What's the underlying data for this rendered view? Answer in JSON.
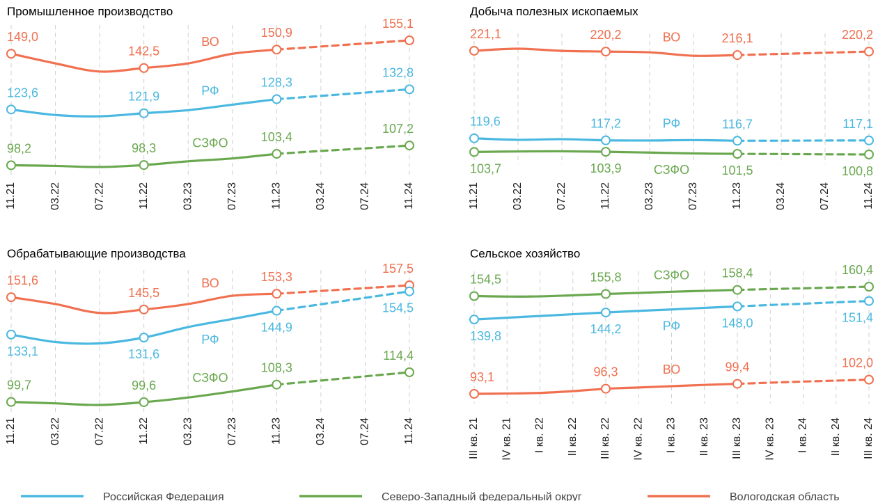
{
  "chart_data": [
    {
      "type": "line",
      "title": "Промышленное производство",
      "categories": [
        "11.21",
        "03.22",
        "07.22",
        "11.22",
        "03.23",
        "07.23",
        "11.23",
        "03.24",
        "07.24",
        "11.24"
      ],
      "forecast_from": 6,
      "grid": true,
      "series": [
        {
          "name": "ВО",
          "color": "#f07050",
          "label_position": "above",
          "values": [
            149.0,
            144.6,
            140.9,
            142.5,
            144.6,
            149.0,
            150.9,
            152.3,
            153.7,
            155.1
          ],
          "value_labels": [
            "149,0",
            null,
            null,
            "142,5",
            null,
            null,
            "150,9",
            null,
            null,
            "155,1"
          ]
        },
        {
          "name": "РФ",
          "color": "#4ab8e0",
          "label_position": "above",
          "values": [
            123.6,
            121.1,
            120.5,
            121.9,
            123.3,
            125.8,
            128.3,
            129.8,
            131.3,
            132.8
          ],
          "value_labels": [
            "123,6",
            null,
            null,
            "121,9",
            null,
            null,
            "128,3",
            null,
            null,
            "132,8"
          ]
        },
        {
          "name": "СЗФО",
          "color": "#6aa84f",
          "label_position": "above",
          "values": [
            98.2,
            97.9,
            97.4,
            98.3,
            100.0,
            101.3,
            103.4,
            104.7,
            105.9,
            107.2
          ],
          "value_labels": [
            "98,2",
            null,
            null,
            "98,3",
            null,
            null,
            "103,4",
            null,
            null,
            "107,2"
          ]
        }
      ]
    },
    {
      "type": "line",
      "title": "Добыча полезных ископаемых",
      "categories": [
        "11.21",
        "03.22",
        "07.22",
        "11.22",
        "03.23",
        "07.23",
        "11.23",
        "03.24",
        "07.24",
        "11.24"
      ],
      "forecast_from": 6,
      "grid": true,
      "series": [
        {
          "name": "ВО",
          "color": "#f07050",
          "label_position": "above",
          "values": [
            221.1,
            223.5,
            221.0,
            220.2,
            219.3,
            215.3,
            216.1,
            217.5,
            218.8,
            220.2
          ],
          "value_labels": [
            "221,1",
            null,
            null,
            "220,2",
            null,
            null,
            "216,1",
            null,
            null,
            "220,2"
          ]
        },
        {
          "name": "РФ",
          "color": "#4ab8e0",
          "label_position": "above",
          "values": [
            119.6,
            117.8,
            118.6,
            117.2,
            117.0,
            117.5,
            116.7,
            116.8,
            117.0,
            117.1
          ],
          "value_labels": [
            "119,6",
            null,
            null,
            "117,2",
            null,
            null,
            "116,7",
            null,
            null,
            "117,1"
          ]
        },
        {
          "name": "СЗФО",
          "color": "#6aa84f",
          "label_position": "below",
          "values": [
            103.7,
            104.3,
            104.5,
            103.9,
            103.0,
            102.0,
            101.5,
            101.3,
            101.0,
            100.8
          ],
          "value_labels": [
            "103,7",
            null,
            null,
            "103,9",
            null,
            null,
            "101,5",
            null,
            null,
            "100,8"
          ]
        }
      ]
    },
    {
      "type": "line",
      "title": "Обрабатывающие производства",
      "categories": [
        "11.21",
        "03.22",
        "07.22",
        "11.22",
        "03.23",
        "07.23",
        "11.23",
        "03.24",
        "07.24",
        "11.24"
      ],
      "forecast_from": 6,
      "grid": true,
      "series": [
        {
          "name": "ВО",
          "color": "#f07050",
          "label_position": "above",
          "values": [
            151.6,
            148.2,
            143.8,
            145.5,
            148.2,
            152.3,
            153.3,
            154.7,
            156.1,
            157.5
          ],
          "value_labels": [
            "151,6",
            null,
            null,
            "145,5",
            null,
            null,
            "153,3",
            null,
            null,
            "157,5"
          ]
        },
        {
          "name": "РФ",
          "color": "#4ab8e0",
          "label_position": "below",
          "values": [
            133.1,
            129.4,
            128.7,
            131.6,
            136.8,
            140.8,
            144.9,
            148.1,
            151.3,
            154.5
          ],
          "value_labels": [
            "133,1",
            null,
            null,
            "131,6",
            null,
            null,
            "144,9",
            null,
            null,
            "154,5"
          ]
        },
        {
          "name": "СЗФО",
          "color": "#6aa84f",
          "label_position": "above",
          "values": [
            99.7,
            99.0,
            98.2,
            99.6,
            101.9,
            104.9,
            108.3,
            110.3,
            112.4,
            114.4
          ],
          "value_labels": [
            "99,7",
            null,
            null,
            "99,6",
            null,
            null,
            "108,3",
            null,
            null,
            "114,4"
          ]
        }
      ]
    },
    {
      "type": "line",
      "title": "Сельское хозяйство",
      "categories": [
        "III кв. 21",
        "IV кв. 21",
        "I кв. 22",
        "II кв. 22",
        "III кв. 22",
        "IV кв. 22",
        "I кв. 23",
        "II кв. 23",
        "III кв. 23",
        "IV кв. 23",
        "I кв. 24",
        "II кв. 24",
        "III кв. 24"
      ],
      "forecast_from": 8,
      "grid": true,
      "series": [
        {
          "name": "СЗФО",
          "color": "#6aa84f",
          "label_position": "above",
          "values": [
            154.5,
            154.2,
            154.3,
            155.0,
            155.8,
            156.5,
            157.2,
            157.8,
            158.4,
            158.9,
            159.4,
            159.9,
            160.4
          ],
          "value_labels": [
            "154,5",
            null,
            null,
            null,
            "155,8",
            null,
            null,
            null,
            "158,4",
            null,
            null,
            null,
            "160,4"
          ]
        },
        {
          "name": "РФ",
          "color": "#4ab8e0",
          "label_position": "below",
          "values": [
            139.8,
            140.9,
            142.0,
            143.1,
            144.2,
            145.2,
            146.1,
            147.1,
            148.0,
            148.9,
            149.7,
            150.6,
            151.4
          ],
          "value_labels": [
            "139,8",
            null,
            null,
            null,
            "144,2",
            null,
            null,
            null,
            "148,0",
            null,
            null,
            null,
            "151,4"
          ]
        },
        {
          "name": "ВО",
          "color": "#f07050",
          "label_position": "above",
          "values": [
            93.1,
            93.3,
            93.7,
            94.8,
            96.3,
            97.1,
            97.9,
            98.7,
            99.4,
            100.1,
            100.8,
            101.4,
            102.0
          ],
          "value_labels": [
            "93,1",
            null,
            null,
            null,
            "96,3",
            null,
            null,
            null,
            "99,4",
            null,
            null,
            null,
            "102,0"
          ]
        }
      ]
    }
  ],
  "legend": [
    {
      "name": "Российская Федерация",
      "color": "#4ab8e0"
    },
    {
      "name": "Северо-Западный федеральный округ",
      "color": "#6aa84f"
    },
    {
      "name": "Вологодская область",
      "color": "#f07050"
    }
  ]
}
